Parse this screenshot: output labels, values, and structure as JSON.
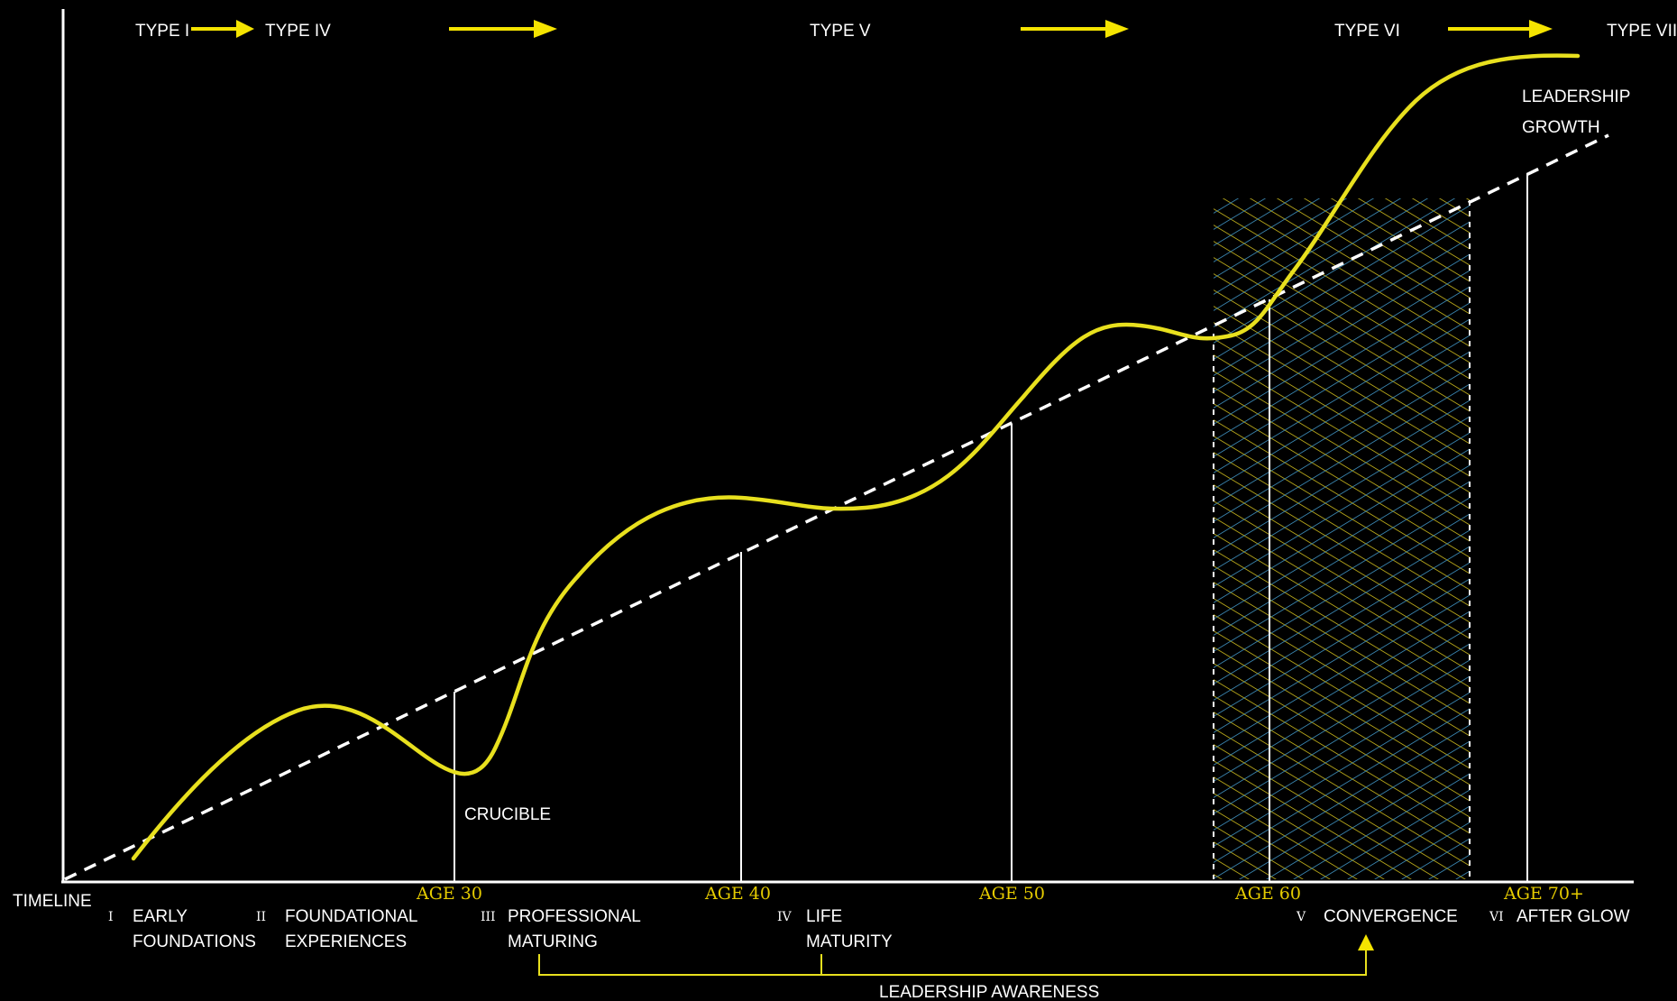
{
  "types": [
    "TYPE I",
    "TYPE IV",
    "TYPE V",
    "TYPE VI",
    "TYPE VII"
  ],
  "axis_label": "TIMELINE",
  "ages": [
    "AGE 30",
    "AGE 40",
    "AGE 50",
    "AGE 60",
    "AGE 70+"
  ],
  "stages": [
    {
      "numeral": "I",
      "line1": "EARLY",
      "line2": "FOUNDATIONS"
    },
    {
      "numeral": "II",
      "line1": "FOUNDATIONAL",
      "line2": "EXPERIENCES"
    },
    {
      "numeral": "III",
      "line1": "PROFESSIONAL",
      "line2": "MATURING"
    },
    {
      "numeral": "IV",
      "line1": "LIFE",
      "line2": "MATURITY"
    },
    {
      "numeral": "V",
      "line1": "CONVERGENCE",
      "line2": ""
    },
    {
      "numeral": "VI",
      "line1": "AFTER GLOW",
      "line2": ""
    }
  ],
  "annotations": {
    "crucible": "CRUCIBLE",
    "growth_line1": "LEADERSHIP",
    "growth_line2": "GROWTH",
    "awareness": "LEADERSHIP AWARENESS"
  },
  "colors": {
    "background": "#000000",
    "curve": "#e8e01e",
    "arrows": "#f5e400",
    "age_labels": "#e6cc00",
    "lines": "#ffffff",
    "hatch_yellow": "#b8a81a",
    "hatch_blue": "#3a86b0"
  }
}
